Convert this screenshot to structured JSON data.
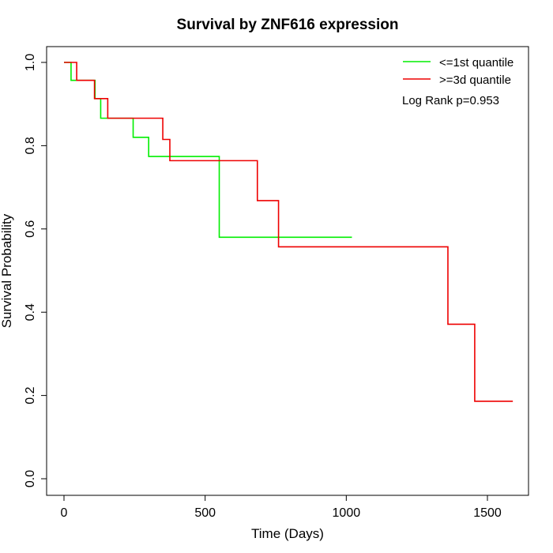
{
  "chart_data": {
    "type": "line",
    "title": "Survival by ZNF616 expression",
    "xlabel": "Time (Days)",
    "ylabel": "Survival Probability",
    "xlim": [
      0,
      1600
    ],
    "ylim": [
      0,
      1
    ],
    "x_ticks": [
      0,
      500,
      1000,
      1500
    ],
    "y_ticks": [
      0.0,
      0.2,
      0.4,
      0.6,
      0.8,
      1.0
    ],
    "x_tick_labels": [
      "0",
      "500",
      "1000",
      "1500"
    ],
    "y_tick_labels": [
      "0.0",
      "0.2",
      "0.4",
      "0.6",
      "0.8",
      "1.0"
    ],
    "grid": false,
    "legend_position": "top-right",
    "step": true,
    "series": [
      {
        "name": "<=1st quantile",
        "color": "#00ee00",
        "x": [
          0,
          25,
          110,
          130,
          245,
          300,
          550,
          1020
        ],
        "y": [
          1.0,
          0.957,
          0.913,
          0.866,
          0.82,
          0.774,
          0.58,
          0.58
        ]
      },
      {
        "name": ">=3d quantile",
        "color": "#ee0000",
        "x": [
          0,
          45,
          108,
          155,
          350,
          375,
          685,
          760,
          1360,
          1455,
          1590
        ],
        "y": [
          1.0,
          0.957,
          0.913,
          0.866,
          0.815,
          0.764,
          0.668,
          0.557,
          0.371,
          0.186,
          0.186
        ]
      }
    ],
    "annotation": "Log Rank p=0.953"
  }
}
